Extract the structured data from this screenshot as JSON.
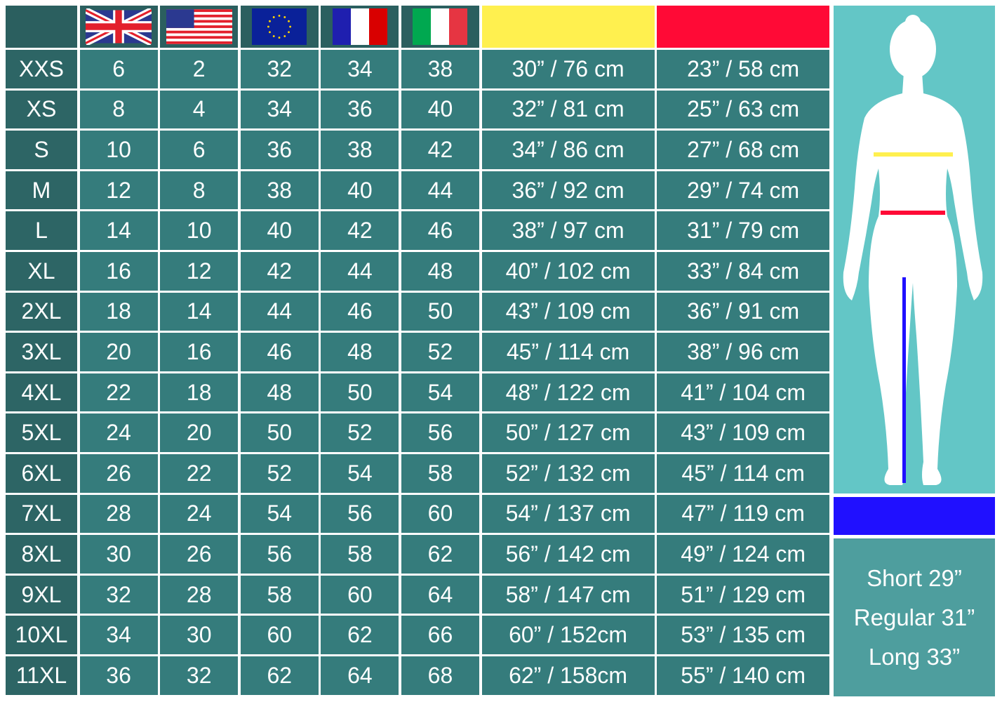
{
  "header": {
    "flags": [
      {
        "icon": "uk-flag-icon"
      },
      {
        "icon": "us-flag-icon"
      },
      {
        "icon": "eu-flag-icon"
      },
      {
        "icon": "france-flag-icon"
      },
      {
        "icon": "italy-flag-icon"
      }
    ],
    "bust_color": "#fff04f",
    "waist_color": "#ff0a36",
    "inseam_color": "#2010ff"
  },
  "rows": [
    [
      "XXS",
      "6",
      "2",
      "32",
      "34",
      "38",
      "30” / 76 cm",
      "23” / 58 cm"
    ],
    [
      "XS",
      "8",
      "4",
      "34",
      "36",
      "40",
      "32” / 81 cm",
      "25” / 63 cm"
    ],
    [
      "S",
      "10",
      "6",
      "36",
      "38",
      "42",
      "34” / 86 cm",
      "27” / 68 cm"
    ],
    [
      "M",
      "12",
      "8",
      "38",
      "40",
      "44",
      "36” / 92 cm",
      "29” / 74 cm"
    ],
    [
      "L",
      "14",
      "10",
      "40",
      "42",
      "46",
      "38” / 97 cm",
      "31” / 79 cm"
    ],
    [
      "XL",
      "16",
      "12",
      "42",
      "44",
      "48",
      "40” / 102 cm",
      "33” / 84 cm"
    ],
    [
      "2XL",
      "18",
      "14",
      "44",
      "46",
      "50",
      "43” / 109 cm",
      "36” / 91 cm"
    ],
    [
      "3XL",
      "20",
      "16",
      "46",
      "48",
      "52",
      "45” / 114 cm",
      "38” / 96 cm"
    ],
    [
      "4XL",
      "22",
      "18",
      "48",
      "50",
      "54",
      "48” / 122 cm",
      "41” / 104 cm"
    ],
    [
      "5XL",
      "24",
      "20",
      "50",
      "52",
      "56",
      "50” / 127 cm",
      "43” / 109 cm"
    ],
    [
      "6XL",
      "26",
      "22",
      "52",
      "54",
      "58",
      "52” / 132 cm",
      "45” / 114 cm"
    ],
    [
      "7XL",
      "28",
      "24",
      "54",
      "56",
      "60",
      "54” / 137 cm",
      "47” / 119 cm"
    ],
    [
      "8XL",
      "30",
      "26",
      "56",
      "58",
      "62",
      "56” / 142 cm",
      "49” / 124 cm"
    ],
    [
      "9XL",
      "32",
      "28",
      "58",
      "60",
      "64",
      "58” / 147 cm",
      "51” / 129 cm"
    ],
    [
      "10XL",
      "34",
      "30",
      "60",
      "62",
      "66",
      "60” / 152cm",
      "53” / 135 cm"
    ],
    [
      "11XL",
      "36",
      "32",
      "62",
      "64",
      "68",
      "62” / 158cm",
      "55” / 140 cm"
    ]
  ],
  "inseam": {
    "short": "Short 29”",
    "regular": "Regular 31”",
    "long": "Long 33”"
  }
}
